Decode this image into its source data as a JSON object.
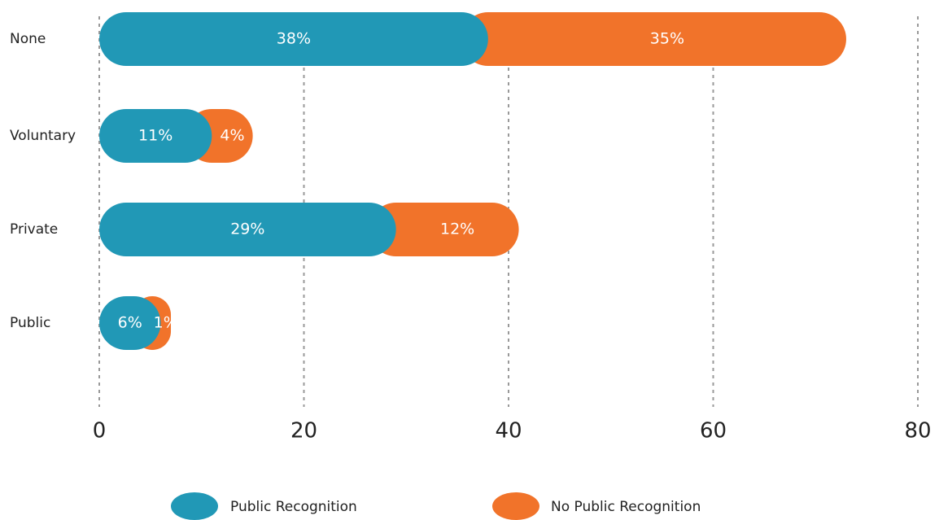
{
  "chart_data": {
    "type": "stacked_barh",
    "categories": [
      "None",
      "Voluntary",
      "Private",
      "Public"
    ],
    "series": [
      {
        "name": "Public Recognition",
        "color": "#2198b6",
        "values": [
          38,
          11,
          29,
          6
        ],
        "value_labels": [
          "38%",
          "11%",
          "29%",
          "6%"
        ]
      },
      {
        "name": "No Public Recognition",
        "color": "#f1732a",
        "values": [
          35,
          4,
          12,
          1
        ],
        "value_labels": [
          "35%",
          "4%",
          "12%",
          "1%"
        ]
      }
    ],
    "xlim": [
      0,
      80
    ],
    "xticks": [
      0,
      20,
      40,
      60,
      80
    ],
    "grid": true,
    "legend": "bottom"
  }
}
